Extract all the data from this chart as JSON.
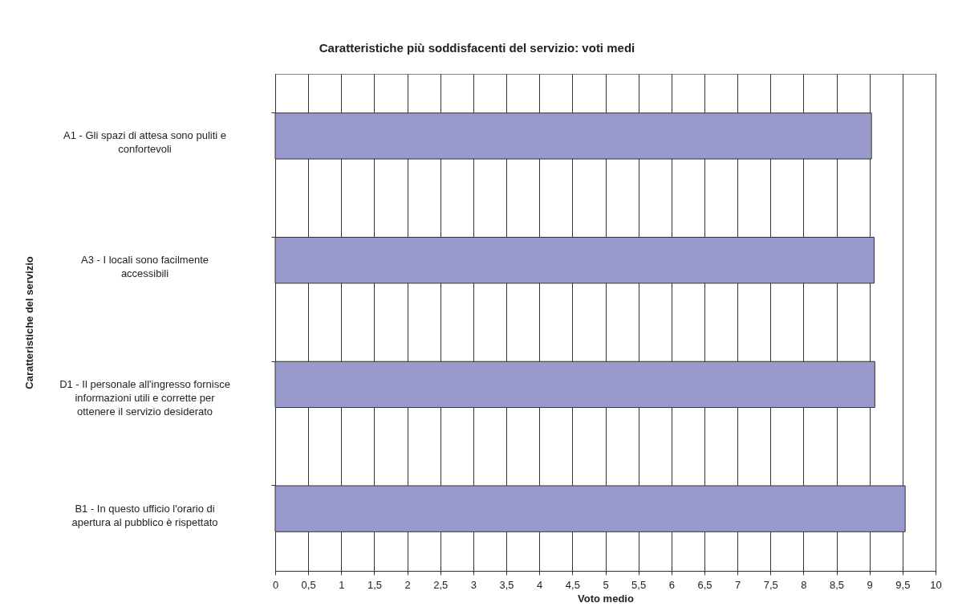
{
  "chart_data": {
    "type": "bar",
    "orientation": "horizontal",
    "title": "Caratteristiche più soddisfacenti del servizio: voti medi",
    "xlabel": "Voto medio",
    "ylabel": "Caratteristiche del servizio",
    "categories": [
      "A1 - Gli spazi di attesa sono puliti e confortevoli",
      "A3 - I locali sono facilmente accessibili",
      "D1 - Il personale all'ingresso fornisce informazioni utili e corrette per ottenere il servizio desiderato",
      "B1 - In questo ufficio l'orario di apertura al pubblico è rispettato"
    ],
    "values": [
      9.03,
      9.07,
      9.08,
      9.54
    ],
    "color": "#9999cc",
    "xlim": [
      0,
      10
    ],
    "xticks": [
      0,
      {
        "value": 0.5,
        "label": "0,5"
      },
      1,
      {
        "value": 1.5,
        "label": "1,5"
      },
      2,
      {
        "value": 2.5,
        "label": "2,5"
      },
      3,
      {
        "value": 3.5,
        "label": "3,5"
      },
      4,
      {
        "value": 4.5,
        "label": "4,5"
      },
      5,
      {
        "value": 5.5,
        "label": "5,5"
      },
      6,
      {
        "value": 6.5,
        "label": "6,5"
      },
      7,
      {
        "value": 7.5,
        "label": "7,5"
      },
      8,
      {
        "value": 8.5,
        "label": "8,5"
      },
      9,
      {
        "value": 9.5,
        "label": "9,5"
      },
      10
    ],
    "grid": "x"
  }
}
